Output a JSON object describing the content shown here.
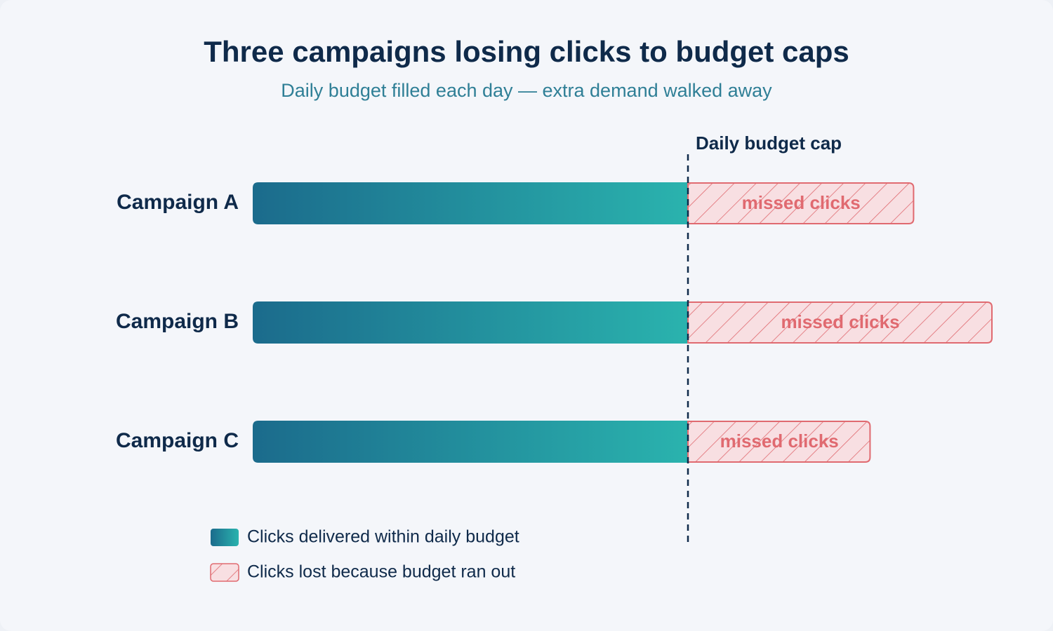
{
  "chart_data": {
    "type": "bar",
    "title": "Three campaigns losing clicks to budget caps",
    "subtitle": "Daily budget filled each day — extra demand walked away",
    "categories": [
      "Campaign A",
      "Campaign B",
      "Campaign C"
    ],
    "series": [
      {
        "name": "Clicks delivered within daily budget",
        "values": [
          100,
          100,
          100
        ],
        "color": "#1b6b8c",
        "color_end": "#2ab3ae"
      },
      {
        "name": "Clicks lost because budget ran out",
        "values": [
          52,
          70,
          42
        ],
        "color": "#e06a70",
        "fill": "#f8dfe2"
      }
    ],
    "stacked": true,
    "orientation": "horizontal",
    "segment_label": "missed clicks",
    "reference_line": {
      "label": "Daily budget cap",
      "value": 100
    },
    "xlim": [
      0,
      170
    ],
    "grid": false,
    "legend": "bottom-left"
  }
}
